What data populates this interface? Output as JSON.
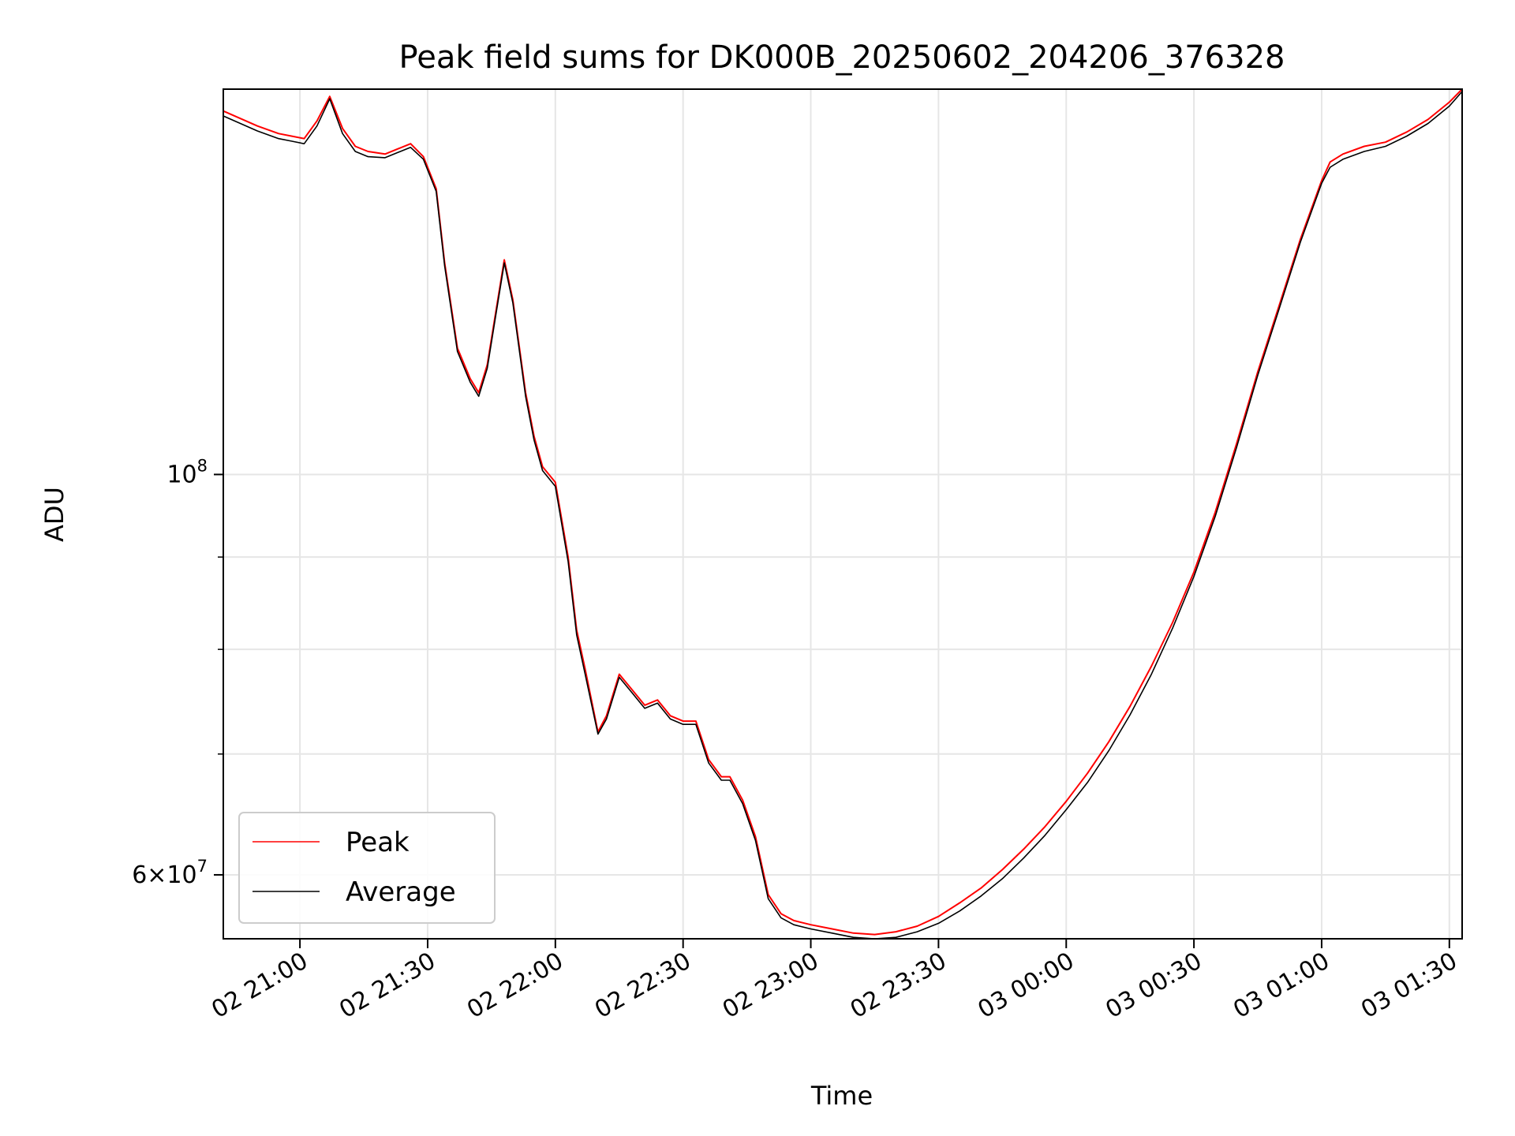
{
  "chart_data": {
    "type": "line",
    "title": "Peak field sums for DK000B_20250602_204206_376328",
    "xlabel": "Time",
    "ylabel": "ADU",
    "yscale": "log",
    "grid": true,
    "legend_position": "lower-left",
    "x_ticks": [
      "02 21:00",
      "02 21:30",
      "02 22:00",
      "02 22:30",
      "02 23:00",
      "02 23:30",
      "03 00:00",
      "03 00:30",
      "03 01:00",
      "03 01:30"
    ],
    "y_major_ticks": [
      {
        "value": 100000000,
        "base": "10",
        "exp": "8",
        "mantissa": ""
      },
      {
        "value": 60000000,
        "base": "10",
        "exp": "7",
        "mantissa": "6"
      }
    ],
    "y_minor_ticks": [
      70000000,
      80000000,
      90000000
    ],
    "series": [
      {
        "name": "Peak",
        "color": "#ff0000",
        "x": [
          "02 20:42",
          "02 20:50",
          "02 20:55",
          "02 20:58",
          "02 21:01",
          "02 21:04",
          "02 21:07",
          "02 21:10",
          "02 21:13",
          "02 21:16",
          "02 21:20",
          "02 21:23",
          "02 21:26",
          "02 21:29",
          "02 21:32",
          "02 21:34",
          "02 21:37",
          "02 21:40",
          "02 21:42",
          "02 21:44",
          "02 21:46",
          "02 21:48",
          "02 21:50",
          "02 21:53",
          "02 21:55",
          "02 21:57",
          "02 22:00",
          "02 22:03",
          "02 22:05",
          "02 22:07",
          "02 22:10",
          "02 22:12",
          "02 22:15",
          "02 22:18",
          "02 22:21",
          "02 22:24",
          "02 22:27",
          "02 22:30",
          "02 22:33",
          "02 22:36",
          "02 22:39",
          "02 22:41",
          "02 22:44",
          "02 22:47",
          "02 22:50",
          "02 22:53",
          "02 22:56",
          "02 23:00",
          "02 23:05",
          "02 23:10",
          "02 23:15",
          "02 23:20",
          "02 23:25",
          "02 23:30",
          "02 23:35",
          "02 23:40",
          "02 23:45",
          "02 23:50",
          "02 23:55",
          "03 00:00",
          "03 00:05",
          "03 00:10",
          "03 00:15",
          "03 00:20",
          "03 00:25",
          "03 00:30",
          "03 00:35",
          "03 00:40",
          "03 00:45",
          "03 00:50",
          "03 00:55",
          "03 01:00",
          "03 01:02",
          "03 01:05",
          "03 01:10",
          "03 01:15",
          "03 01:20",
          "03 01:25",
          "03 01:30",
          "03 01:33"
        ],
        "values": [
          159000000,
          156000000,
          154500000,
          154000000,
          153500000,
          157000000,
          162000000,
          155500000,
          152000000,
          151000000,
          150500000,
          151500000,
          152500000,
          150000000,
          144000000,
          131000000,
          117500000,
          113000000,
          111000000,
          115000000,
          123000000,
          131500000,
          125000000,
          111000000,
          105000000,
          101000000,
          99000000,
          90000000,
          82000000,
          78000000,
          72000000,
          73500000,
          77500000,
          76000000,
          74500000,
          75000000,
          73500000,
          73000000,
          73000000,
          69500000,
          68000000,
          68000000,
          66000000,
          63000000,
          58500000,
          57100000,
          56600000,
          56300000,
          56000000,
          55700000,
          55600000,
          55800000,
          56200000,
          56900000,
          57900000,
          59000000,
          60400000,
          62000000,
          63800000,
          65900000,
          68300000,
          71100000,
          74400000,
          78300000,
          82800000,
          88300000,
          95300000,
          104000000,
          114000000,
          124000000,
          135000000,
          145500000,
          149000000,
          150500000,
          152000000,
          152800000,
          154800000,
          157300000,
          160800000,
          163500000
        ]
      },
      {
        "name": "Average",
        "color": "#000000",
        "x": [
          "02 20:42",
          "02 20:50",
          "02 20:55",
          "02 20:58",
          "02 21:01",
          "02 21:04",
          "02 21:07",
          "02 21:10",
          "02 21:13",
          "02 21:16",
          "02 21:20",
          "02 21:23",
          "02 21:26",
          "02 21:29",
          "02 21:32",
          "02 21:34",
          "02 21:37",
          "02 21:40",
          "02 21:42",
          "02 21:44",
          "02 21:46",
          "02 21:48",
          "02 21:50",
          "02 21:53",
          "02 21:55",
          "02 21:57",
          "02 22:00",
          "02 22:03",
          "02 22:05",
          "02 22:07",
          "02 22:10",
          "02 22:12",
          "02 22:15",
          "02 22:18",
          "02 22:21",
          "02 22:24",
          "02 22:27",
          "02 22:30",
          "02 22:33",
          "02 22:36",
          "02 22:39",
          "02 22:41",
          "02 22:44",
          "02 22:47",
          "02 22:50",
          "02 22:53",
          "02 22:56",
          "02 23:00",
          "02 23:05",
          "02 23:10",
          "02 23:15",
          "02 23:20",
          "02 23:25",
          "02 23:30",
          "02 23:35",
          "02 23:40",
          "02 23:45",
          "02 23:50",
          "02 23:55",
          "03 00:00",
          "03 00:05",
          "03 00:10",
          "03 00:15",
          "03 00:20",
          "03 00:25",
          "03 00:30",
          "03 00:35",
          "03 00:40",
          "03 00:45",
          "03 00:50",
          "03 00:55",
          "03 01:00",
          "03 01:02",
          "03 01:05",
          "03 01:10",
          "03 01:15",
          "03 01:20",
          "03 01:25",
          "03 01:30",
          "03 01:33"
        ],
        "values": [
          158000000,
          155000000,
          153500000,
          153000000,
          152500000,
          156000000,
          161500000,
          154500000,
          151000000,
          150000000,
          149800000,
          150800000,
          151800000,
          149500000,
          143500000,
          130500000,
          117000000,
          112500000,
          110500000,
          114500000,
          122500000,
          131000000,
          124500000,
          110500000,
          104500000,
          100500000,
          98500000,
          89500000,
          81500000,
          77500000,
          71800000,
          73200000,
          77200000,
          75700000,
          74200000,
          74700000,
          73200000,
          72700000,
          72700000,
          69200000,
          67700000,
          67700000,
          65700000,
          62700000,
          58200000,
          56800000,
          56300000,
          56000000,
          55700000,
          55400000,
          55300000,
          55400000,
          55800000,
          56400000,
          57300000,
          58400000,
          59700000,
          61300000,
          63100000,
          65200000,
          67500000,
          70300000,
          73600000,
          77500000,
          82200000,
          87800000,
          94800000,
          103500000,
          113500000,
          123500000,
          134500000,
          145000000,
          148000000,
          149500000,
          151000000,
          152000000,
          154000000,
          156500000,
          160000000,
          163000000
        ]
      }
    ]
  }
}
